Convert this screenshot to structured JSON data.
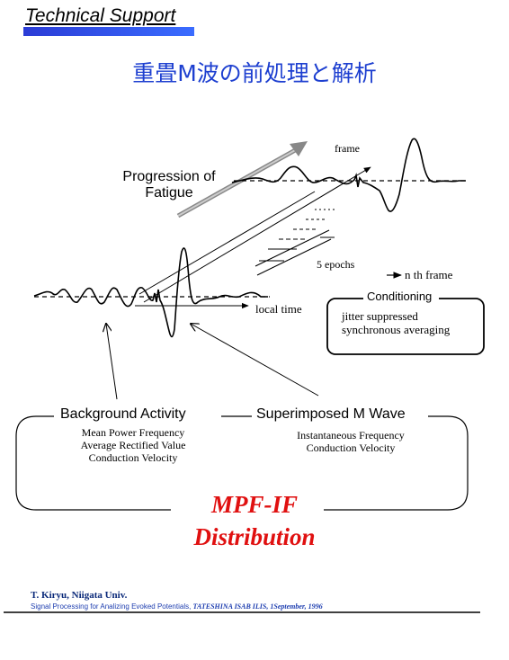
{
  "header": {
    "title": "Technical Support"
  },
  "main_title": "重畳M波の前処理と解析",
  "labels": {
    "frame": "frame",
    "progression_line1": "Progression of",
    "progression_line2": "Fatigue",
    "epochs": "5 epochs",
    "nth_frame": "n th  frame",
    "local_time": "local time",
    "conditioning": "Conditioning",
    "conditioning_item1": "jitter suppressed",
    "conditioning_item2": "synchronous averaging"
  },
  "background_activity": {
    "title": "Background Activity",
    "items": [
      "Mean Power Frequency",
      "Average Rectified Value",
      "Conduction Velocity"
    ]
  },
  "superimposed_m_wave": {
    "title": "Superimposed M Wave",
    "items": [
      "Instantaneous Frequency",
      "Conduction Velocity"
    ]
  },
  "distribution": {
    "line1": "MPF-IF",
    "line2": "Distribution"
  },
  "footer": {
    "author": "T. Kiryu, Niigata Univ.",
    "ref_text": "Signal Processing for Analizing Evoked Potentials, ",
    "ref_venue": "TATESHINA ISAB ILIS, 1September, 1996"
  },
  "colors": {
    "title_blue": "#1d3fd0",
    "header_bar": "#2b3cd6",
    "distribution_red": "#e01010"
  }
}
